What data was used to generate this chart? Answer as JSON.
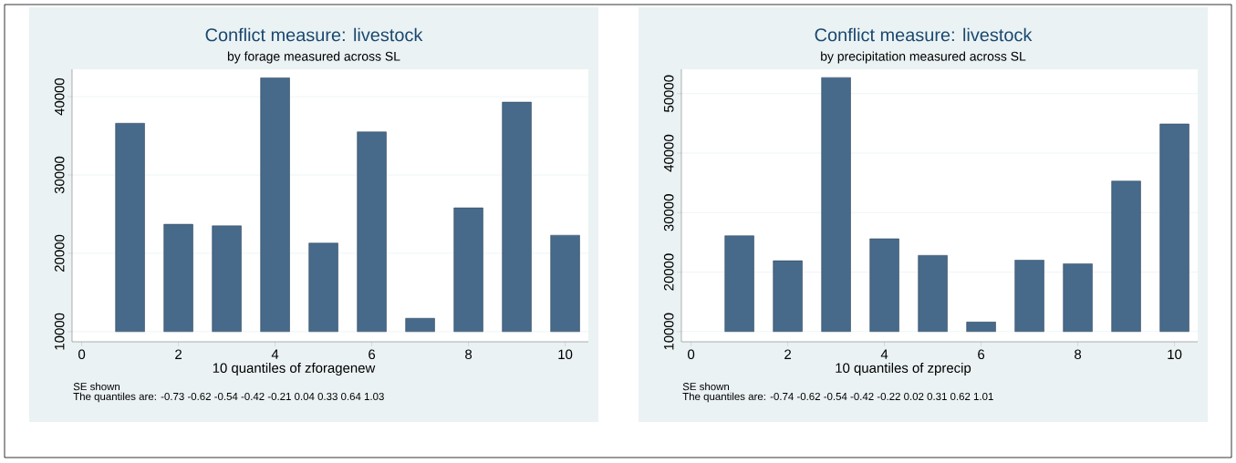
{
  "chart_data": [
    {
      "type": "bar",
      "title": "Conflict measure: livestock",
      "subtitle": "by forage measured across SL",
      "xlabel": "10 quantiles of zforagenew",
      "annotations": [
        "SE shown",
        "The quantiles are: -0.73 -0.62 -0.54 -0.42 -0.21 0.04 0.33 0.64 1.03"
      ],
      "x": [
        1,
        2,
        3,
        4,
        5,
        6,
        7,
        8,
        9,
        10
      ],
      "base": [
        10000,
        10000,
        10000,
        10000,
        10000,
        10000,
        10000,
        10000,
        10000,
        10000
      ],
      "values": [
        26600,
        13700,
        13500,
        32400,
        11300,
        25500,
        1700,
        15800,
        29300,
        12300
      ],
      "color": "#476a8a",
      "xlim": [
        -0.2,
        10.48
      ],
      "ylim": [
        8700,
        43500
      ],
      "xticks": [
        0,
        2,
        4,
        6,
        8,
        10
      ],
      "yticks": [
        10000,
        20000,
        30000,
        40000
      ],
      "grid": "y"
    },
    {
      "type": "bar",
      "title": "Conflict measure: livestock",
      "subtitle": "by precipitation measured across SL",
      "xlabel": "10 quantiles of zprecip",
      "annotations": [
        "SE shown",
        "The quantiles are: -0.74 -0.62 -0.54 -0.42 -0.22 0.02 0.31 0.62 1.01"
      ],
      "x": [
        1,
        2,
        3,
        4,
        5,
        6,
        7,
        8,
        9,
        10
      ],
      "base": [
        10000,
        10000,
        10000,
        10000,
        10000,
        10000,
        10000,
        10000,
        10000,
        10000
      ],
      "values": [
        16100,
        11900,
        42700,
        15600,
        12800,
        1600,
        12000,
        11400,
        25300,
        34900
      ],
      "color": "#476a8a",
      "xlim": [
        -0.2,
        10.48
      ],
      "ylim": [
        8280,
        54100
      ],
      "xticks": [
        0,
        2,
        4,
        6,
        8,
        10
      ],
      "yticks": [
        10000,
        20000,
        30000,
        40000,
        50000
      ],
      "grid": "y"
    }
  ]
}
